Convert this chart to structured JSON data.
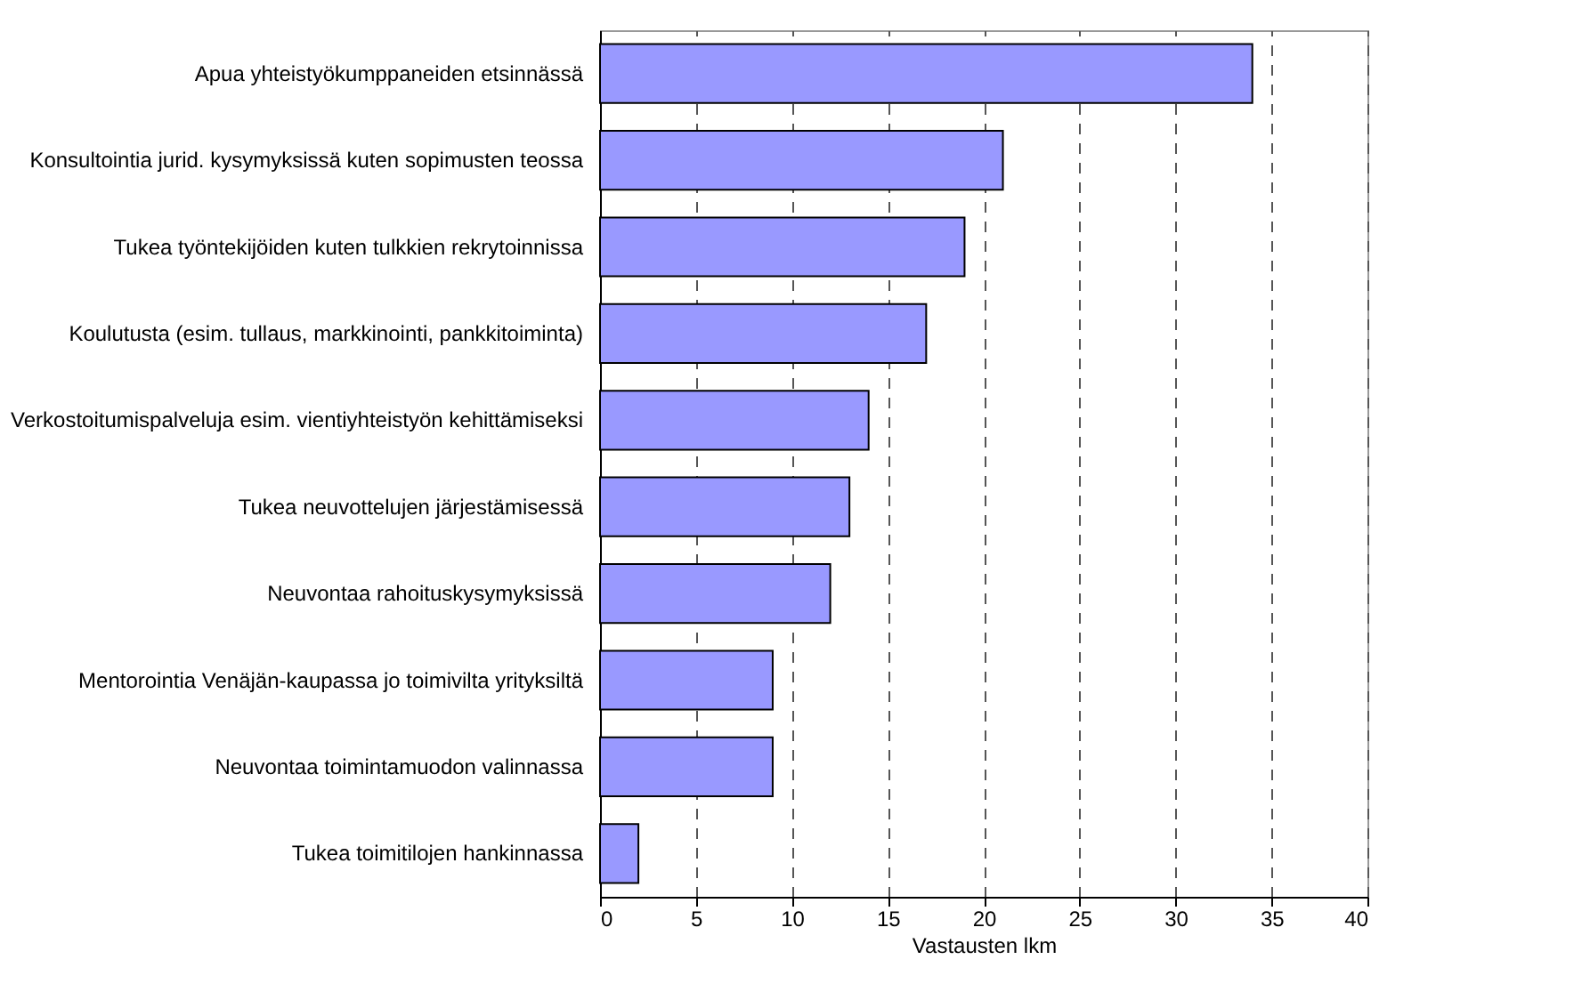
{
  "chart_data": {
    "type": "bar",
    "orientation": "horizontal",
    "xlabel": "Vastausten lkm",
    "categories": [
      "Apua yhteistyökumppaneiden etsinnässä",
      "Konsultointia jurid. kysymyksissä kuten sopimusten teossa",
      "Tukea työntekijöiden kuten tulkkien rekrytoinnissa",
      "Koulutusta (esim. tullaus, markkinointi, pankkitoiminta)",
      "Verkostoitumispalveluja esim. vientiyhteistyön kehittämiseksi",
      "Tukea neuvottelujen järjestämisessä",
      "Neuvontaa rahoituskysymyksissä",
      "Mentorointia Venäjän-kaupassa jo toimivilta yrityksiltä",
      "Neuvontaa toimintamuodon valinnassa",
      "Tukea toimitilojen hankinnassa"
    ],
    "values": [
      34,
      21,
      19,
      17,
      14,
      13,
      12,
      9,
      9,
      2
    ],
    "color": "#9999ff",
    "xlim": [
      0,
      40
    ],
    "xticks": [
      0,
      5,
      10,
      15,
      20,
      25,
      30,
      35,
      40
    ],
    "grid": "x"
  }
}
